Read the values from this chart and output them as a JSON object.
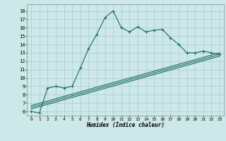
{
  "xlabel": "Humidex (Indice chaleur)",
  "bg_color": "#cce8e8",
  "line_color": "#1a6b5a",
  "grid_color": "#aacccc",
  "xlim": [
    -0.5,
    23.5
  ],
  "ylim": [
    5.5,
    18.8
  ],
  "xticks": [
    0,
    1,
    2,
    3,
    4,
    5,
    6,
    7,
    8,
    9,
    10,
    11,
    12,
    13,
    14,
    15,
    16,
    17,
    18,
    19,
    20,
    21,
    22,
    23
  ],
  "yticks": [
    6,
    7,
    8,
    9,
    10,
    11,
    12,
    13,
    14,
    15,
    16,
    17,
    18
  ],
  "series1_x": [
    0,
    1,
    2,
    3,
    4,
    5,
    6,
    7,
    8,
    9,
    10,
    11,
    12,
    13,
    14,
    15,
    16,
    17,
    18,
    19,
    20,
    21,
    22,
    23
  ],
  "series1_y": [
    6.0,
    5.8,
    8.8,
    9.0,
    8.8,
    9.0,
    11.2,
    13.5,
    15.2,
    17.2,
    18.0,
    16.0,
    15.5,
    16.1,
    15.5,
    15.7,
    15.8,
    14.8,
    14.0,
    13.0,
    13.0,
    13.2,
    13.0,
    12.8
  ],
  "series2_x": [
    0,
    23
  ],
  "series2_y": [
    6.3,
    12.6
  ],
  "series3_x": [
    0,
    23
  ],
  "series3_y": [
    6.5,
    12.8
  ],
  "series4_x": [
    0,
    23
  ],
  "series4_y": [
    6.7,
    13.0
  ]
}
